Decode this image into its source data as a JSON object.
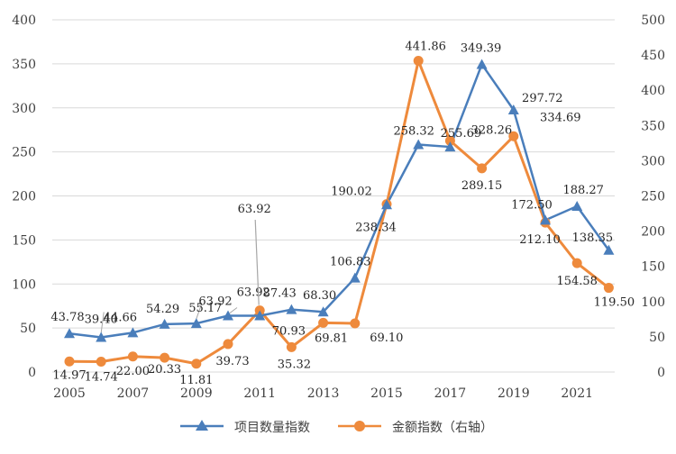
{
  "chart_data": {
    "type": "line",
    "title": "",
    "categories": [
      "2005",
      "2006",
      "2007",
      "2008",
      "2009",
      "2010",
      "2011",
      "2012",
      "2013",
      "2014",
      "2015",
      "2016",
      "2017",
      "2018",
      "2019",
      "2020",
      "2021",
      "2022"
    ],
    "x_tick_labels": [
      "2005",
      "2007",
      "2009",
      "2011",
      "2013",
      "2015",
      "2017",
      "2019",
      "2021"
    ],
    "y_left": {
      "min": 0,
      "max": 400,
      "step": 50,
      "ticks": [
        "0",
        "50",
        "100",
        "150",
        "200",
        "250",
        "300",
        "350",
        "400"
      ]
    },
    "y_right": {
      "min": 0,
      "max": 500,
      "step": 50,
      "ticks": [
        "0",
        "50",
        "100",
        "150",
        "200",
        "250",
        "300",
        "350",
        "400",
        "450",
        "500"
      ]
    },
    "grid": true,
    "legend_position": "bottom",
    "series": [
      {
        "name": "项目数量指数",
        "axis": "left",
        "color": "#4a7ebb",
        "marker": "triangle",
        "values": [
          43.78,
          39.4,
          44.66,
          54.29,
          55.17,
          63.92,
          63.92,
          70.93,
          68.3,
          106.83,
          190.02,
          258.32,
          255.69,
          349.39,
          297.72,
          172.5,
          188.27,
          138.35
        ],
        "labels": [
          "43.78",
          "39.40",
          "44.66",
          "54.29",
          "55.17",
          "63.92",
          "63.92",
          "70.93",
          "68.30",
          "106.83",
          "190.02",
          "258.32",
          "255.69",
          "349.39",
          "297.72",
          "172.50",
          "188.27",
          "138.35"
        ]
      },
      {
        "name": "金额指数（右轴）",
        "axis": "right",
        "color": "#ee8a3c",
        "marker": "circle",
        "values": [
          14.97,
          14.74,
          22.0,
          20.33,
          11.81,
          39.73,
          87.43,
          35.32,
          69.81,
          69.1,
          238.34,
          441.86,
          328.26,
          289.15,
          334.69,
          212.1,
          154.58,
          119.5
        ],
        "labels": [
          "14.97",
          "14.74",
          "22.00",
          "20.33",
          "11.81",
          "39.73",
          "87.43",
          "35.32",
          "69.81",
          "69.10",
          "238.34",
          "441.86",
          "328.26",
          "289.15",
          "334.69",
          "212.10",
          "154.58",
          "119.50"
        ]
      }
    ],
    "annotations": [
      "63.92"
    ]
  },
  "colors": {
    "grid": "#d9d9d9",
    "axis_text": "#404040",
    "label_text": "#262626",
    "leader": "#a6a6a6"
  }
}
